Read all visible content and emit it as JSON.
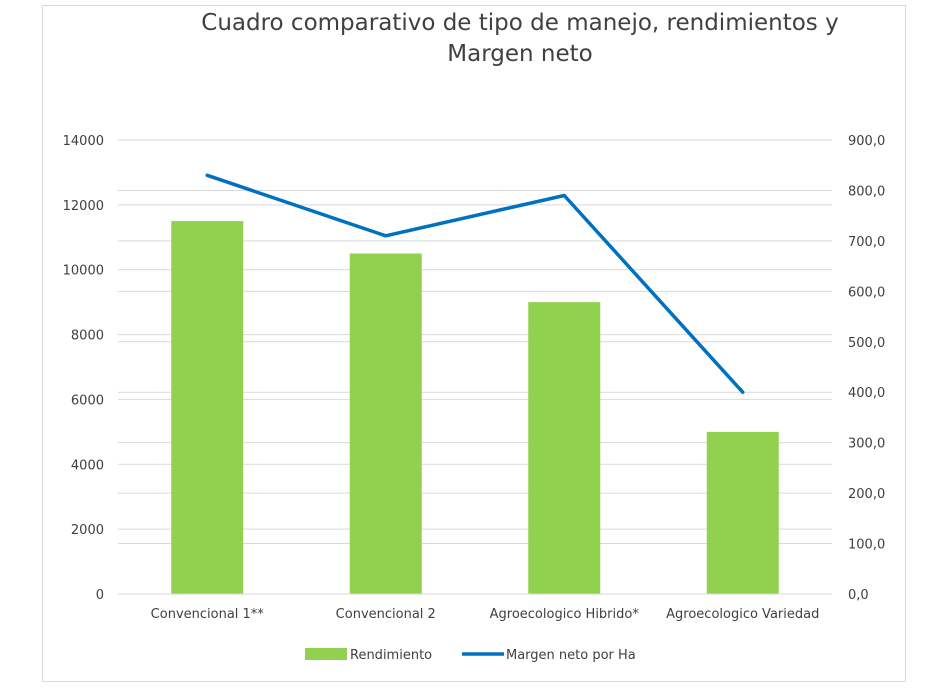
{
  "chart_data": {
    "type": "bar",
    "title_line1": "Cuadro comparativo de tipo de manejo, rendimientos y",
    "title_line2": "Margen neto",
    "categories": [
      "Convencional 1**",
      "Convencional 2",
      "Agroecologico Hibrido*",
      "Agroecologico Variedad"
    ],
    "series": [
      {
        "name": "Rendimiento",
        "type": "bar",
        "axis": "left",
        "color": "#92d050",
        "values": [
          11500,
          10500,
          9000,
          5000
        ]
      },
      {
        "name": "Margen neto por Ha",
        "type": "line",
        "axis": "right",
        "color": "#0070c0",
        "values": [
          830,
          710,
          790,
          400
        ]
      }
    ],
    "y_left": {
      "min": 0,
      "max": 14000,
      "ticks": [
        "0",
        "2000",
        "4000",
        "6000",
        "8000",
        "10000",
        "12000",
        "14000"
      ]
    },
    "y_right": {
      "min": 0,
      "max": 900,
      "ticks": [
        "0,0",
        "100,0",
        "200,0",
        "300,0",
        "400,0",
        "500,0",
        "600,0",
        "700,0",
        "800,0",
        "900,0"
      ]
    },
    "grid": true,
    "legend_position": "bottom"
  }
}
